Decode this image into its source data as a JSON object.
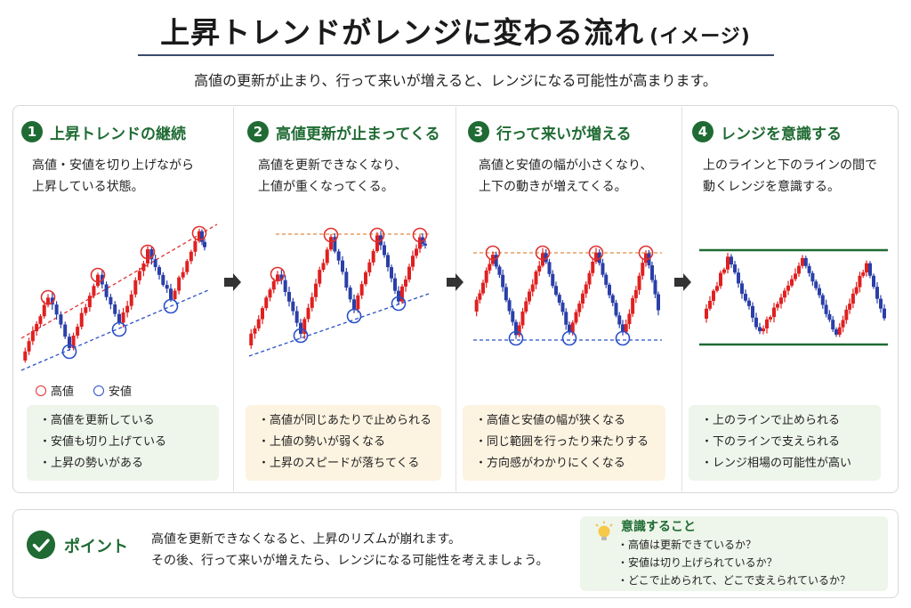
{
  "header": {
    "title": "上昇トレンドがレンジに変わる流れ",
    "title_suffix": "(イメージ)",
    "subtitle": "高値の更新が止まり、行って来いが増えると、レンジになる可能性が高まります。"
  },
  "steps": [
    {
      "number": "1",
      "title": "上昇トレンドの継続",
      "desc": [
        "高値・安値を切り上げながら",
        "上昇している状態。"
      ],
      "bullets": [
        "高値を更新している",
        "安値も切り上げている",
        "上昇の勢いがある"
      ]
    },
    {
      "number": "2",
      "title": "高値更新が止まってくる",
      "desc": [
        "高値を更新できなくなり、",
        "上値が重くなってくる。"
      ],
      "bullets": [
        "高値が同じあたりで止められる",
        "上値の勢いが弱くなる",
        "上昇のスピードが落ちてくる"
      ]
    },
    {
      "number": "3",
      "title": "行って来いが増える",
      "desc": [
        "高値と安値の幅が小さくなり、",
        "上下の動きが増えてくる。"
      ],
      "bullets": [
        "高値と安値の幅が狭くなる",
        "同じ範囲を行ったり来たりする",
        "方向感がわかりにくくなる"
      ]
    },
    {
      "number": "4",
      "title": "レンジを意識する",
      "desc": [
        "上のラインと下のラインの間で",
        "動くレンジを意識する。"
      ],
      "bullets": [
        "上のラインで止められる",
        "下のラインで支えられる",
        "レンジ相場の可能性が高い"
      ]
    }
  ],
  "legend": {
    "high": "高値",
    "low": "安値"
  },
  "point": {
    "label": "ポイント",
    "lines": [
      "高値を更新できなくなると、上昇のリズムが崩れます。",
      "その後、行って来いが増えたら、レンジになる可能性を考えましょう。"
    ]
  },
  "awareness": {
    "title": "意識すること",
    "items": [
      "高値は更新できているか？",
      "安値は切り上げられているか？",
      "どこで止められて、どこで支えられているか？"
    ]
  },
  "colors": {
    "accent_green": "#1f6b33",
    "candle_up": "#e02020",
    "candle_down": "#2a3fa8",
    "high_marker": "#e03030",
    "low_marker": "#2a50c8",
    "range_line": "#1f6b33"
  },
  "icons": [
    "right-arrow-icon",
    "check-circle-icon",
    "lightbulb-icon"
  ]
}
